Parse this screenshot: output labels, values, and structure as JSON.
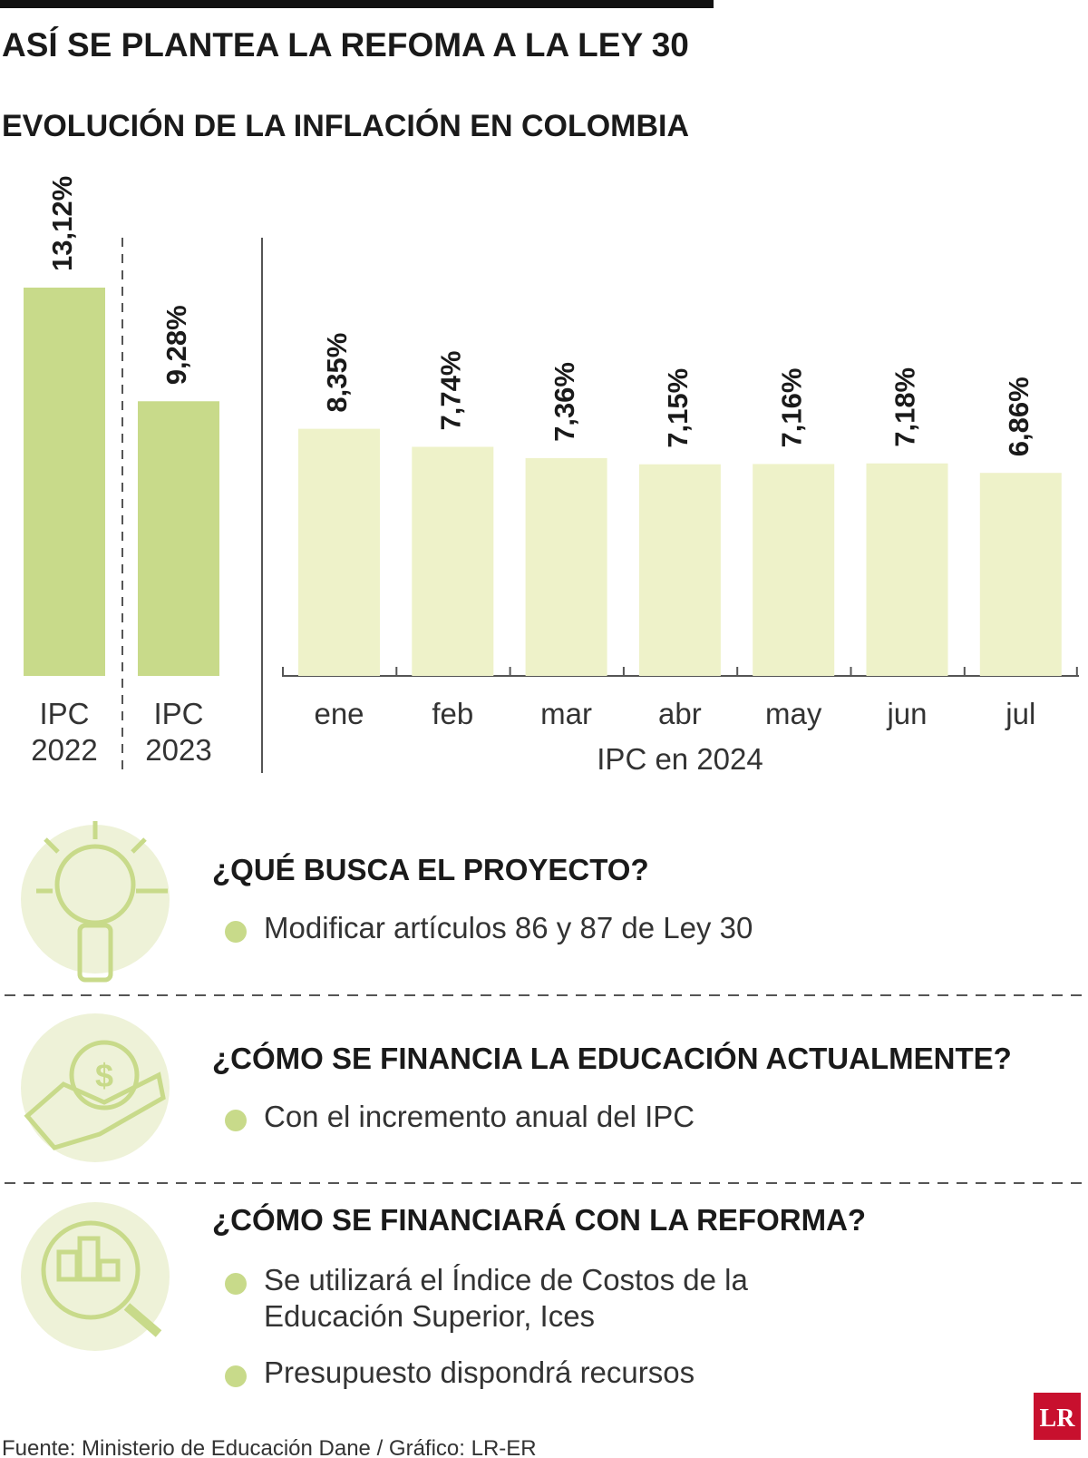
{
  "header": {
    "title": "ASÍ SE PLANTEA LA REFOMA A LA LEY 30"
  },
  "chart_data": [
    {
      "type": "bar",
      "title": "EVOLUCIÓN DE LA INFLACIÓN EN COLOMBIA",
      "categories": [
        "IPC 2022",
        "IPC 2023"
      ],
      "values": [
        13.12,
        9.28
      ],
      "value_labels": [
        "13,12%",
        "9,28%"
      ],
      "color": "#c8da8a"
    },
    {
      "type": "bar",
      "x_label": "IPC en 2024",
      "categories": [
        "ene",
        "feb",
        "mar",
        "abr",
        "may",
        "jun",
        "jul"
      ],
      "values": [
        8.35,
        7.74,
        7.36,
        7.15,
        7.16,
        7.18,
        6.86
      ],
      "value_labels": [
        "8,35%",
        "7,74%",
        "7,36%",
        "7,15%",
        "7,16%",
        "7,18%",
        "6,86%"
      ],
      "color": "#eef2c9"
    }
  ],
  "sections": [
    {
      "heading": "¿QUÉ BUSCA EL PROYECTO?",
      "bullets": [
        "Modificar artículos 86 y 87 de Ley 30"
      ]
    },
    {
      "heading": "¿CÓMO SE FINANCIA LA EDUCACIÓN ACTUALMENTE?",
      "bullets": [
        "Con el incremento anual del IPC"
      ]
    },
    {
      "heading": "¿CÓMO SE FINANCIARÁ CON LA REFORMA?",
      "bullets": [
        "Se utilizará el Índice de Costos de la Educación Superior, Ices",
        "Presupuesto dispondrá recursos"
      ]
    }
  ],
  "footer": {
    "source": "Fuente: Ministerio de Educación Dane / Gráfico: LR-ER",
    "logo": "LR"
  }
}
